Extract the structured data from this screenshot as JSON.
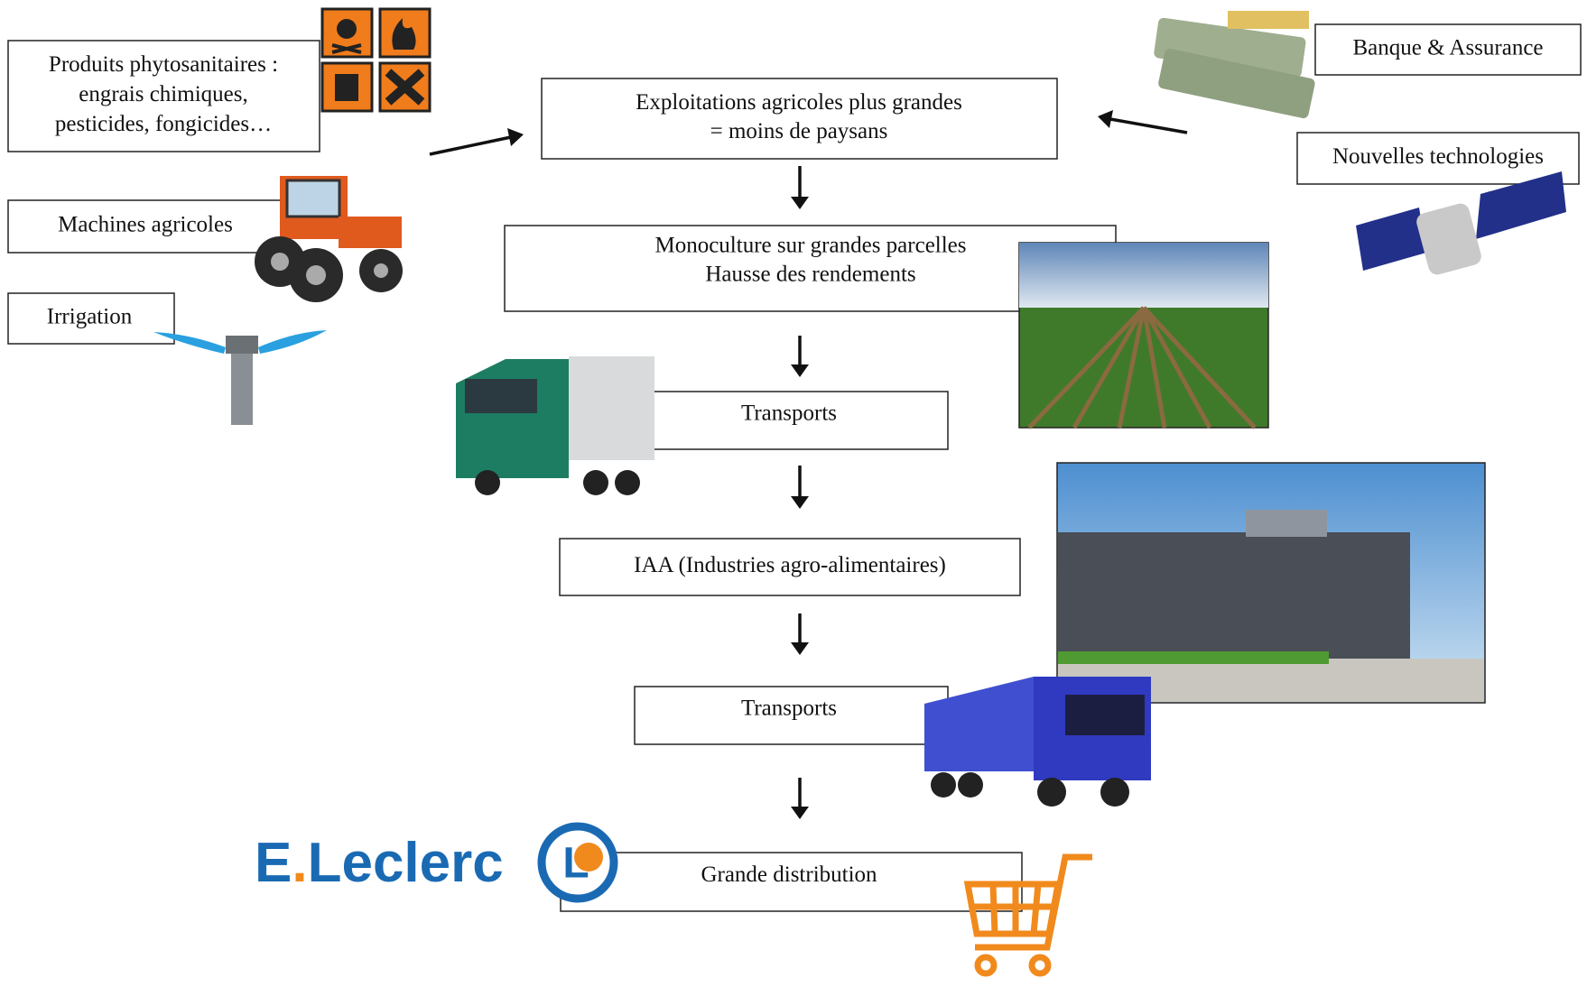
{
  "nodes": [
    {
      "lines": [
        "Produits phytosanitaires :",
        "engrais chimiques,",
        "pesticides, fongicides…"
      ]
    },
    {
      "lines": [
        "Machines agricoles"
      ]
    },
    {
      "lines": [
        "Irrigation"
      ]
    },
    {
      "lines": [
        "Exploitations agricoles plus grandes",
        "= moins de paysans"
      ]
    },
    {
      "lines": [
        "Monoculture sur grandes parcelles",
        "Hausse des rendements"
      ]
    },
    {
      "lines": [
        "Transports"
      ]
    },
    {
      "lines": [
        "IAA (Industries agro-alimentaires)"
      ]
    },
    {
      "lines": [
        "Transports"
      ]
    },
    {
      "lines": [
        "Grande distribution"
      ]
    },
    {
      "lines": [
        "Banque & Assurance"
      ]
    },
    {
      "lines": [
        "Nouvelles technologies"
      ]
    }
  ],
  "logo": {
    "e": "E",
    "dot": ".",
    "name": "Leclerc",
    "mark": "L"
  }
}
